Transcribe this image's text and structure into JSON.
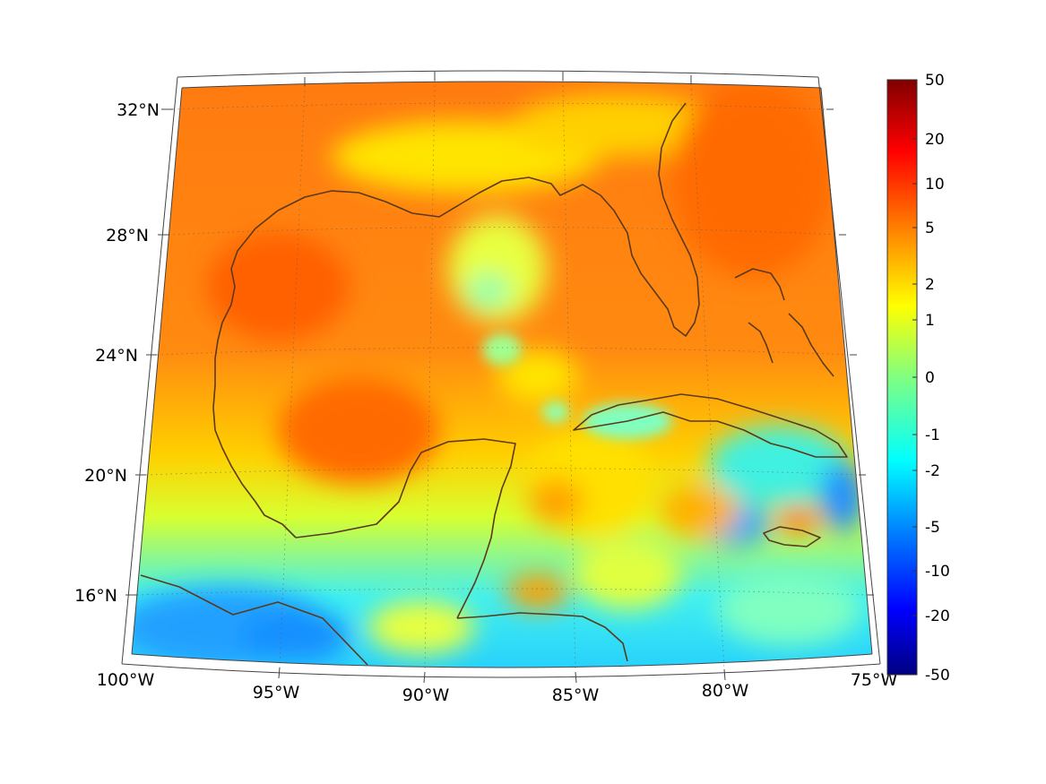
{
  "map": {
    "projection": "conic",
    "region": "Gulf of Mexico and western Caribbean",
    "lon_labels": [
      "100°W",
      "95°W",
      "90°W",
      "85°W",
      "80°W",
      "75°W"
    ],
    "lat_labels": [
      "16°N",
      "20°N",
      "24°N",
      "28°N",
      "32°N"
    ],
    "coastline_color": "#5a3a1a",
    "grid": "dotted"
  },
  "colorbar": {
    "colormap": "jet",
    "tick_labels": [
      "50",
      "20",
      "10",
      "5",
      "2",
      "1",
      "0",
      "-1",
      "-2",
      "-5",
      "-10",
      "-20",
      "-50"
    ],
    "colors": [
      "#800000",
      "#ff0000",
      "#ff8000",
      "#ffff00",
      "#80ff80",
      "#00ffff",
      "#0080ff",
      "#0000ff",
      "#000080"
    ]
  }
}
